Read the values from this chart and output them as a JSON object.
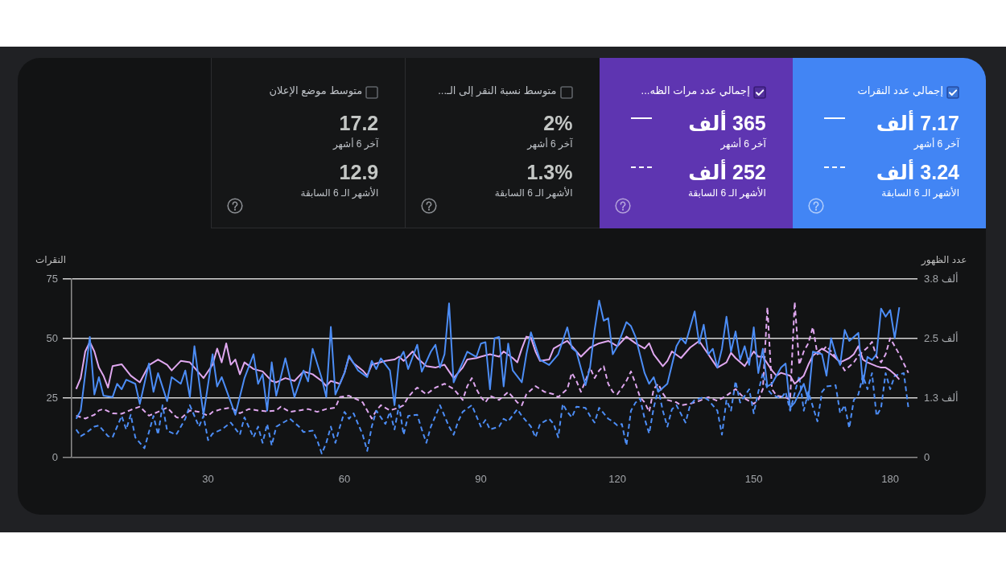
{
  "chart_data": [
    {
      "type": "other",
      "annotations": [
        "إجمالي عدد النقرات",
        "7.17 ألف",
        "آخر 6 أشهر",
        "3.24 ألف",
        "الأشهر الـ 6 السابقة",
        "إجمالي عدد مرات الظه...",
        "365 ألف",
        "آخر 6 أشهر",
        "252 ألف",
        "الأشهر الـ 6 السابقة",
        "متوسط نسبة النقر إلى الـ...",
        "2%",
        "آخر 6 أشهر",
        "1.3%",
        "الأشهر الـ 6 السابقة",
        "متوسط موضع الإعلان",
        "17.2",
        "آخر 6 أشهر",
        "12.9",
        "الأشهر الـ 6 السابقة"
      ]
    },
    {
      "type": "line",
      "ylabel": "النقرات",
      "y2label": "عدد الظهور",
      "xlim": [
        0,
        186
      ],
      "xticks": [
        30,
        60,
        90,
        120,
        150,
        180
      ],
      "ylim": [
        0,
        75
      ],
      "yticks": [
        0,
        25,
        50,
        75
      ],
      "y2lim": [
        0,
        3.75
      ],
      "y2ticks": [
        0,
        {
          "value": 1.25,
          "label": "1.3 ألف"
        },
        {
          "value": 2.5,
          "label": "2.5 ألف"
        },
        {
          "value": 3.75,
          "label": "3.8 ألف"
        }
      ],
      "grid": "y",
      "series": [
        {
          "color": "#4c8df6",
          "line_style": "solid",
          "x": [
            1,
            2,
            4,
            5,
            6,
            7,
            9,
            10,
            11,
            12,
            14,
            15,
            17,
            18,
            19,
            21,
            22,
            24,
            25,
            26,
            27,
            29,
            31,
            32,
            33,
            36,
            38,
            40,
            41,
            42,
            43,
            44,
            45,
            47,
            49,
            51,
            52,
            53,
            55,
            56,
            57,
            58,
            60,
            61,
            63,
            65,
            66,
            67,
            68,
            70,
            71,
            72,
            73,
            74,
            76,
            77,
            79,
            80,
            81,
            82,
            83,
            84,
            86,
            87,
            89,
            90,
            91,
            92,
            93,
            94,
            95,
            96,
            97,
            99,
            100,
            101,
            103,
            105,
            107,
            109,
            110,
            111,
            113,
            114,
            115,
            116,
            117,
            118,
            119,
            120,
            122,
            123,
            124,
            126,
            127,
            128,
            129,
            131,
            133,
            134,
            135,
            137,
            138,
            139,
            140,
            141,
            142,
            143,
            144,
            145,
            146,
            147,
            148,
            149,
            150,
            151,
            152,
            153,
            154,
            156,
            157,
            158,
            159,
            161,
            162,
            163,
            165,
            166,
            167,
            168,
            169,
            170,
            171,
            173,
            174,
            175,
            176,
            177,
            178,
            179,
            180,
            181,
            182
          ],
          "values": [
            16.3,
            19.7,
            50.7,
            26.5,
            33.8,
            26,
            25.4,
            31,
            28.7,
            32.7,
            31,
            22.5,
            39.5,
            27.6,
            35.5,
            23.7,
            33.8,
            31,
            36.6,
            25.4,
            46.8,
            18,
            43.4,
            29.9,
            33.8,
            18,
            33.3,
            43.4,
            31,
            35,
            19.7,
            40,
            26,
            41.7,
            25.4,
            36.6,
            32,
            45.7,
            33.3,
            25.4,
            54.9,
            26.5,
            35.5,
            42.8,
            36.6,
            33.8,
            40.6,
            37.2,
            41.7,
            36.6,
            22,
            41.1,
            44.5,
            37.2,
            47.4,
            36.1,
            44.5,
            47.4,
            37.8,
            43.4,
            64.8,
            31.6,
            40,
            44.5,
            42.3,
            47.9,
            48.5,
            28.7,
            50.2,
            50.7,
            29.9,
            47.9,
            36.6,
            31.6,
            43.4,
            52.6,
            41.1,
            38.9,
            43.4,
            54.7,
            46,
            44.5,
            30.4,
            37.8,
            53.6,
            66,
            57.5,
            58.6,
            43.4,
            46.8,
            56.9,
            55.2,
            50.7,
            35.5,
            31,
            33.8,
            27.6,
            31,
            46.8,
            50.2,
            47.9,
            61.4,
            47.9,
            55.8,
            43.4,
            45.7,
            37.8,
            45.7,
            59.2,
            44.5,
            53,
            41.1,
            46.8,
            38.9,
            54.7,
            35.5,
            45.7,
            29.9,
            31,
            37.8,
            39.5,
            20.9,
            23.1,
            31,
            24.2,
            44.5,
            43.4,
            34.4,
            50.2,
            43.4,
            38.9,
            53.6,
            49,
            52.4,
            31,
            42.3,
            41,
            43.4,
            62.6,
            59.2,
            62,
            50.2,
            63.1
          ]
        },
        {
          "color": "#e0a8f0",
          "line_style": "solid",
          "axis": "y2",
          "x": [
            1,
            2,
            3,
            4,
            5,
            6,
            7,
            8,
            9,
            11,
            13,
            15,
            17,
            19,
            21,
            22,
            24,
            26,
            28,
            29,
            31,
            32,
            33,
            34,
            35,
            36,
            37,
            38,
            40,
            42,
            44,
            45,
            47,
            49,
            51,
            53,
            55,
            56,
            57,
            59,
            60,
            61,
            62,
            64,
            65,
            66,
            69,
            71,
            72,
            73,
            75,
            76,
            78,
            80,
            82,
            83,
            84,
            86,
            87,
            89,
            90,
            92,
            94,
            95,
            97,
            98,
            99,
            100,
            101,
            102,
            103,
            105,
            106,
            108,
            109,
            111,
            112,
            114,
            116,
            118,
            120,
            122,
            124,
            126,
            127,
            128,
            130,
            131,
            132,
            134,
            136,
            138,
            140,
            141,
            142,
            144,
            145,
            146,
            148,
            150,
            151,
            152,
            154,
            155,
            156,
            158,
            159,
            161,
            162,
            163,
            165,
            166,
            167,
            168,
            169,
            171,
            172,
            173,
            174,
            175,
            177,
            178,
            179,
            180,
            181,
            182
          ],
          "values": [
            1.44,
            1.67,
            2.23,
            2.43,
            2.23,
            1.89,
            1.72,
            1.47,
            1.92,
            1.96,
            1.72,
            1.58,
            1.94,
            2.06,
            1.95,
            1.83,
            2.03,
            2,
            1.78,
            1.67,
            1.95,
            2.29,
            2,
            2.4,
            1.95,
            2.06,
            1.75,
            2,
            1.86,
            1.81,
            1.61,
            1.58,
            1.67,
            1.61,
            1.81,
            1.75,
            1.61,
            1.5,
            1.61,
            1.55,
            1.78,
            2.12,
            1.98,
            1.83,
            1.72,
            1.95,
            2.03,
            2.06,
            2.12,
            2.03,
            2.23,
            2.09,
            1.92,
            1.89,
            1.95,
            1.81,
            1.67,
            1.89,
            2.06,
            2.09,
            2.12,
            2.17,
            2.12,
            2.23,
            2.09,
            2,
            2.29,
            2.54,
            2.52,
            2.23,
            2.03,
            2.06,
            2.29,
            2.4,
            2.45,
            2.23,
            2.12,
            2.31,
            2.4,
            2.45,
            2.34,
            2.54,
            2.4,
            2.29,
            2.4,
            2.17,
            1.92,
            2.03,
            2.23,
            2.09,
            2.31,
            2.45,
            2.17,
            2.03,
            1.89,
            2,
            2.2,
            2.09,
            1.92,
            2.23,
            2.12,
            2.12,
            1.83,
            1.72,
            1.78,
            1.72,
            1.55,
            1.72,
            1.95,
            2.14,
            2.29,
            2.23,
            2.17,
            2.09,
            2,
            2.09,
            2.17,
            2.34,
            2.06,
            2,
            1.92,
            1.89,
            1.89,
            1.83,
            1.75,
            1.64
          ]
        },
        {
          "color": "#4c8df6",
          "line_style": "dashed",
          "x": [
            1,
            2,
            3,
            5,
            6,
            8,
            9,
            11,
            12,
            13,
            14,
            16,
            18,
            19,
            20,
            21,
            23,
            25,
            26,
            28,
            29,
            30,
            31,
            33,
            35,
            37,
            38,
            40,
            41,
            42,
            43,
            44,
            45,
            47,
            48,
            50,
            51,
            53,
            54,
            55,
            56,
            57,
            58,
            59,
            60,
            61,
            62,
            64,
            65,
            66,
            67,
            69,
            70,
            71,
            72,
            73,
            74,
            76,
            77,
            78,
            79,
            80,
            81,
            83,
            84,
            85,
            86,
            88,
            90,
            91,
            92,
            94,
            95,
            96,
            98,
            99,
            101,
            102,
            103,
            105,
            106,
            107,
            108,
            109,
            110,
            111,
            113,
            114,
            115,
            116,
            118,
            119,
            120,
            121,
            122,
            123,
            124,
            125,
            126,
            127,
            128,
            129,
            130,
            131,
            132,
            133,
            135,
            136,
            137,
            139,
            140,
            142,
            143,
            144,
            145,
            146,
            147,
            149,
            150,
            151,
            152,
            153,
            154,
            156,
            157,
            158,
            160,
            161,
            162,
            164,
            165,
            166,
            168,
            169,
            170,
            171,
            172,
            173,
            174,
            175,
            176,
            177,
            178,
            179,
            180,
            181,
            183,
            184
          ],
          "values": [
            11.8,
            9,
            10.1,
            13,
            13.5,
            9,
            8.5,
            17.5,
            11.8,
            18,
            8.5,
            3.9,
            17.5,
            9.6,
            22,
            11.3,
            9.6,
            16.3,
            22,
            13,
            17.5,
            7.3,
            10.1,
            11.8,
            14.7,
            9.6,
            16.9,
            8.5,
            13,
            6.2,
            14.1,
            5.1,
            13,
            15.2,
            16.3,
            13,
            10.7,
            11.3,
            7.3,
            1.7,
            6.2,
            13,
            6.2,
            13,
            19.2,
            16.3,
            18.6,
            9.6,
            2.8,
            13,
            19.7,
            14.1,
            19.2,
            11.8,
            22,
            9.6,
            17.5,
            18,
            11.8,
            6.2,
            13,
            17.5,
            22,
            13,
            9.6,
            15.2,
            19.2,
            22,
            13,
            15.8,
            11.8,
            13,
            16.3,
            15.2,
            20.3,
            17.5,
            13,
            8.5,
            14.1,
            16.3,
            14.1,
            8.5,
            22.5,
            19.2,
            16.9,
            21.4,
            20.9,
            17.5,
            14.7,
            20.9,
            16.3,
            15.2,
            13.5,
            14.1,
            5.1,
            19.7,
            23.1,
            24.8,
            16.3,
            10.1,
            20.9,
            28.7,
            19.7,
            13,
            20.3,
            22,
            14.7,
            22,
            24.2,
            25.4,
            24.2,
            19.7,
            9.6,
            24.2,
            19.7,
            32.1,
            23.1,
            28.7,
            18.6,
            27.6,
            35.5,
            28.7,
            26.5,
            24.8,
            27.6,
            19.7,
            34.4,
            19.7,
            27.6,
            15.2,
            27.6,
            29.9,
            30.4,
            18.6,
            22,
            12.4,
            24.2,
            26.5,
            34.4,
            28.7,
            35.5,
            17.5,
            20.9,
            35.5,
            28.7,
            34.4,
            35.5,
            20.9
          ]
        },
        {
          "color": "#e0a8f0",
          "line_style": "dashed",
          "axis": "y2",
          "x": [
            1,
            3,
            5,
            6,
            7,
            9,
            11,
            13,
            15,
            17,
            19,
            21,
            23,
            24,
            26,
            28,
            30,
            31,
            33,
            35,
            37,
            39,
            41,
            43,
            45,
            46,
            48,
            50,
            52,
            54,
            56,
            58,
            59,
            61,
            63,
            64,
            65,
            66,
            67,
            68,
            70,
            72,
            73,
            74,
            75,
            76,
            78,
            80,
            82,
            84,
            85,
            86,
            87,
            88,
            89,
            90,
            91,
            92,
            94,
            96,
            98,
            99,
            100,
            102,
            104,
            106,
            107,
            109,
            110,
            111,
            112,
            113,
            114,
            115,
            116,
            117,
            118,
            119,
            120,
            122,
            123,
            124,
            125,
            126,
            127,
            128,
            129,
            130,
            131,
            133,
            134,
            136,
            138,
            140,
            142,
            144,
            146,
            148,
            150,
            151,
            152,
            153,
            154,
            155,
            157,
            158,
            159,
            160,
            161,
            162,
            163,
            164,
            165,
            166,
            167,
            169,
            170,
            172,
            173,
            175,
            176,
            177,
            178,
            179,
            180,
            182,
            184
          ],
          "values": [
            0.88,
            0.82,
            0.9,
            0.99,
            1.02,
            0.93,
            0.92,
            1,
            1.07,
            0.88,
            0.96,
            1.05,
            0.85,
            0.82,
            0.99,
            0.96,
            0.88,
            0.96,
            1.02,
            1.05,
            0.93,
            1.02,
            0.99,
            0.97,
            0.99,
            1.07,
            0.96,
            0.99,
            1.02,
            0.96,
            1.02,
            1.05,
            1.27,
            1.3,
            1.21,
            1.16,
            0.99,
            0.82,
            0.99,
            1.1,
            0.99,
            1.05,
            1.1,
            1.27,
            1.38,
            1.47,
            1.33,
            1.47,
            1.55,
            1.44,
            1.33,
            1.21,
            1.5,
            1.67,
            1.44,
            1.27,
            1.16,
            1.3,
            1.21,
            1.38,
            1.16,
            1.1,
            1.33,
            1.5,
            1.38,
            1.33,
            1.27,
            1.44,
            1.78,
            1.61,
            1.38,
            1.61,
            1.89,
            1.67,
            1.83,
            1.92,
            1.55,
            1.38,
            1.33,
            1.61,
            1.81,
            1.55,
            1.27,
            1.16,
            0.96,
            1.44,
            1.55,
            1.35,
            1.21,
            1.16,
            1.1,
            1.13,
            1.19,
            1.27,
            1.19,
            1.3,
            1.44,
            1.24,
            1.13,
            1.21,
            1.44,
            3.16,
            1.44,
            1.3,
            1.27,
            1.21,
            3.27,
            1.95,
            2.23,
            2.4,
            2.74,
            2.17,
            2.23,
            2.34,
            2.23,
            2,
            1.83,
            2,
            2.14,
            2.31,
            2.43,
            2.12,
            2,
            2.17,
            2.51,
            2.17,
            1.78
          ]
        }
      ]
    }
  ]
}
